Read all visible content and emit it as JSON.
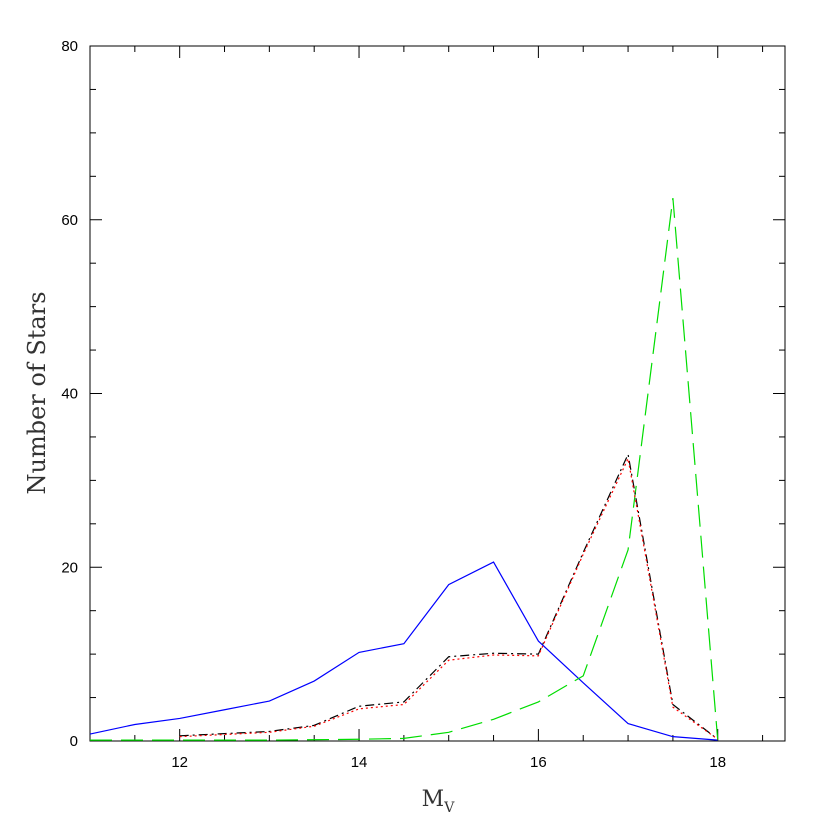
{
  "chart_data": {
    "type": "line",
    "xlabel": "M",
    "xlabel_sub": "V",
    "ylabel": "Number of Stars",
    "xlim": [
      11,
      18.75
    ],
    "ylim": [
      0,
      80
    ],
    "xticks": [
      12,
      14,
      16,
      18
    ],
    "yticks": [
      0,
      20,
      40,
      60,
      80
    ],
    "x_minor_step": 0.5,
    "y_minor_step": 5,
    "series": [
      {
        "color": "#0000ff",
        "dash": "solid",
        "x": [
          11,
          11.5,
          12,
          12.5,
          13,
          13.5,
          14,
          14.5,
          15,
          15.5,
          16,
          16.5,
          17,
          17.5,
          18
        ],
        "y": [
          0.8,
          1.9,
          2.6,
          3.6,
          4.6,
          6.9,
          10.2,
          11.2,
          18.0,
          20.6,
          11.5,
          6.7,
          2.0,
          0.5,
          0.1
        ]
      },
      {
        "color": "#00dd00",
        "dash": "dashed",
        "x": [
          11,
          12,
          13,
          14,
          14.5,
          15,
          15.5,
          16,
          16.5,
          17,
          17.5,
          18
        ],
        "y": [
          0.1,
          0.1,
          0.1,
          0.2,
          0.3,
          1.0,
          2.5,
          4.5,
          7.5,
          22.0,
          62.5,
          0.1
        ]
      },
      {
        "color": "#000000",
        "dash": "dashdot",
        "x": [
          12,
          13,
          13.5,
          14,
          14.5,
          15,
          15.5,
          16,
          16.5,
          17,
          17.5,
          18
        ],
        "y": [
          0.6,
          1.1,
          1.8,
          4.0,
          4.5,
          9.7,
          10.1,
          10.0,
          21.7,
          33.0,
          4.2,
          0.2
        ]
      },
      {
        "color": "#ff0000",
        "dash": "dotted",
        "x": [
          12,
          13,
          13.5,
          14,
          14.5,
          15,
          15.5,
          16,
          16.5,
          17,
          17.5,
          18
        ],
        "y": [
          0.5,
          1.0,
          1.7,
          3.7,
          4.2,
          9.3,
          9.9,
          9.8,
          21.5,
          32.5,
          3.9,
          0.2
        ]
      }
    ]
  }
}
